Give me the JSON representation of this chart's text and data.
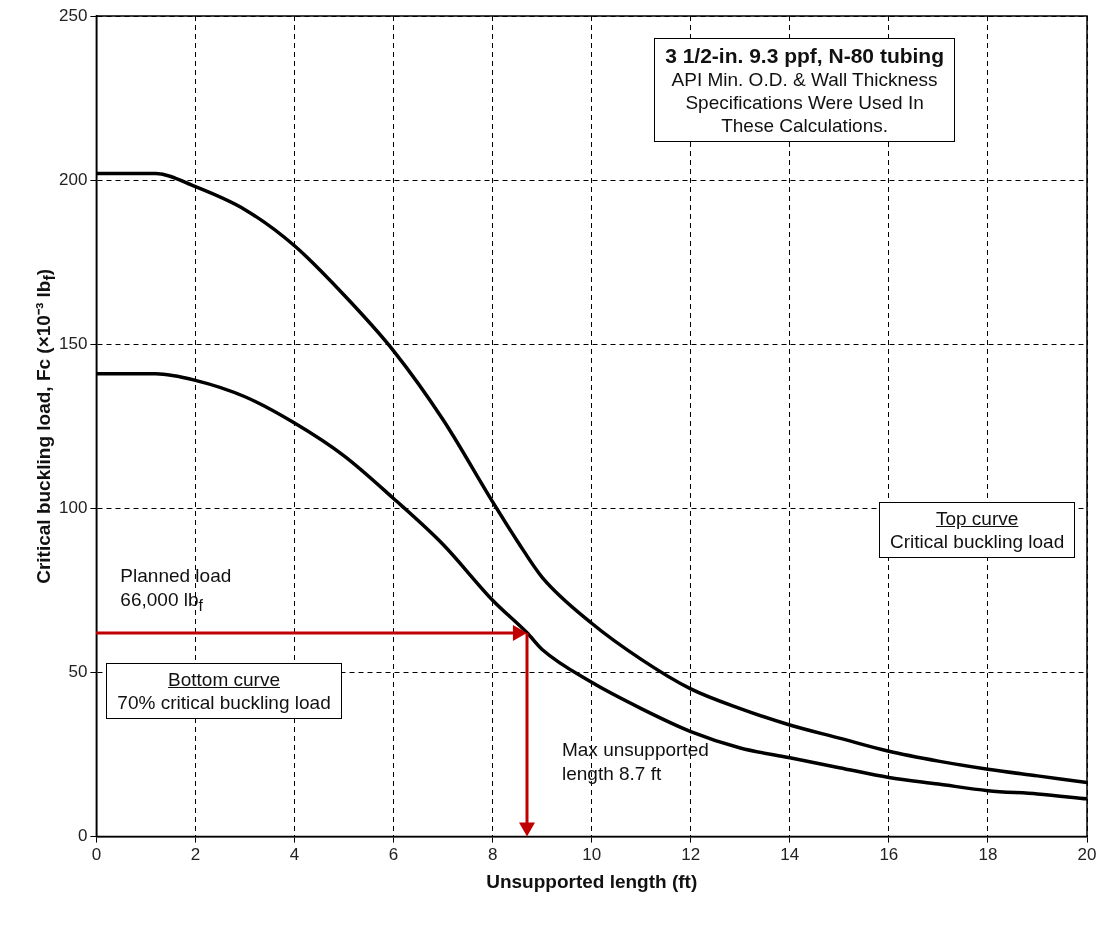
{
  "chart_data": {
    "type": "line",
    "title": "3 1/2-in. 9.3 ppf, N-80 tubing",
    "subtitle": "API Min. O.D. & Wall Thickness\nSpecifications Were Used In\nThese Calculations.",
    "xlabel": "Unsupported length (ft)",
    "ylabel": "Critical buckling load, Fc  (×10⁻³ lb$_{f}$)",
    "xlim": [
      0,
      20
    ],
    "xticks": [
      0,
      2,
      4,
      6,
      8,
      10,
      12,
      14,
      16,
      18,
      20
    ],
    "ylim": [
      0,
      250
    ],
    "yticks": [
      0,
      50,
      100,
      150,
      200,
      250
    ],
    "grid": true,
    "marker": "none",
    "line_style": "solid",
    "series": [
      {
        "color": "#000000",
        "x": [
          0,
          1.2,
          2,
          3,
          4,
          5,
          6,
          7,
          8,
          8.5,
          9,
          10,
          11,
          12,
          13,
          14,
          15,
          16,
          17,
          18,
          19,
          20
        ],
        "values": [
          202,
          202,
          198,
          191,
          180,
          165,
          148,
          127,
          102,
          90,
          79,
          65,
          54,
          45,
          39,
          34,
          30,
          26,
          23,
          20.5,
          18.5,
          16.5
        ]
      },
      {
        "color": "#000000",
        "x": [
          0,
          1.2,
          2,
          3,
          4,
          5,
          6,
          7,
          8,
          8.7,
          9,
          10,
          11,
          12,
          13,
          14,
          15,
          16,
          17,
          18,
          19,
          20
        ],
        "values": [
          141,
          141,
          139,
          134,
          126,
          116,
          103,
          89,
          72,
          62,
          57,
          47,
          39,
          32,
          27,
          24,
          21,
          18,
          16,
          14,
          13,
          11.5
        ]
      }
    ],
    "annotations": [
      "Top curve\nCritical buckling load",
      "Bottom curve\n70%  critical buckling load",
      "Planned load\n66,000 lb$_{f}$",
      "Max unsupported\nlength 8.7 ft"
    ]
  }
}
